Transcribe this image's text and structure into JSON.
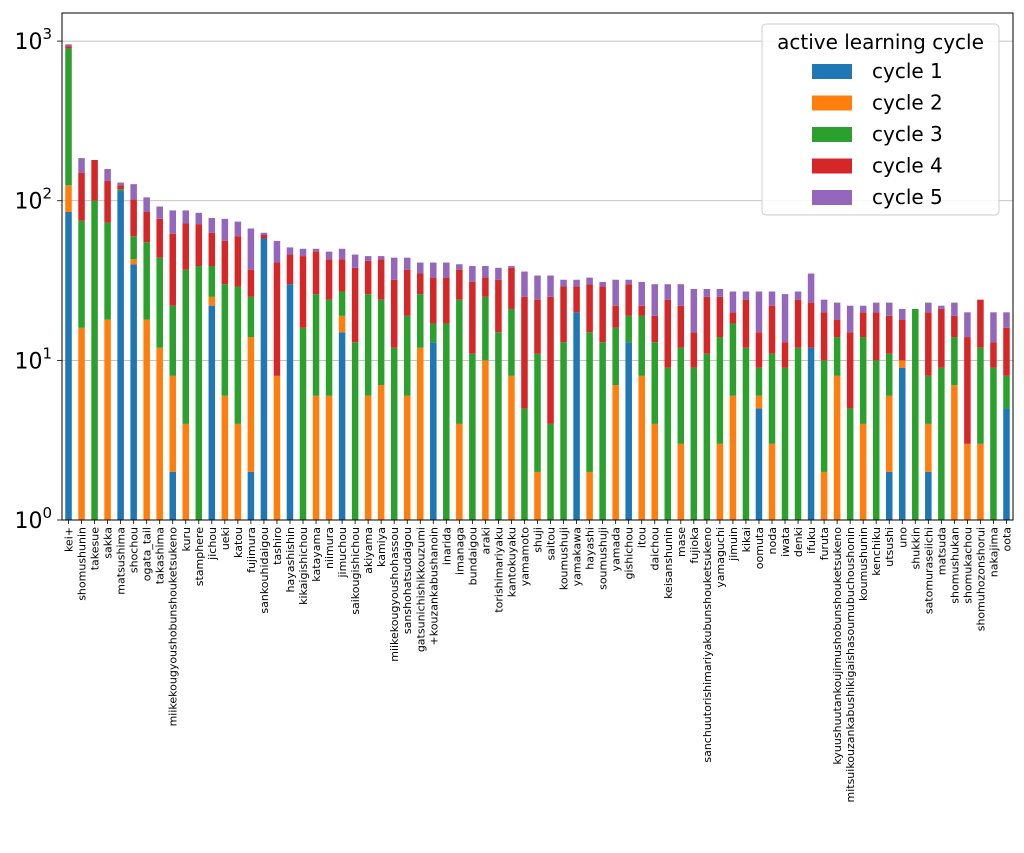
{
  "chart_data": {
    "type": "bar",
    "stacked": true,
    "yscale": "log",
    "ylim": [
      1,
      1500
    ],
    "yticks": [
      1,
      10,
      100,
      1000
    ],
    "ytick_labels": [
      {
        "base": "10",
        "exp": "0"
      },
      {
        "base": "10",
        "exp": "1"
      },
      {
        "base": "10",
        "exp": "2"
      },
      {
        "base": "10",
        "exp": "3"
      }
    ],
    "grid": "y-major",
    "legend": {
      "title": "active learning cycle",
      "position": "top-right"
    },
    "categories": [
      "kei+",
      "shomushunin",
      "takesue",
      "sakka",
      "matsushima",
      "shochou",
      "ogata_tail",
      "takashima",
      "miikekougyoushobunshouketsukeno",
      "kuru",
      "stamphere",
      "jichou",
      "ueki",
      "katou",
      "fujimura",
      "sankouhidaigou",
      "tashiro",
      "hayashishin",
      "kikaigishichou",
      "katayama",
      "niimura",
      "jimuchou",
      "saikougishichou",
      "akiyama",
      "kamiya",
      "miikekougyoushohassou",
      "sanshohatsudaigou",
      "gatsunichishikkouzumi",
      "+kouzankabushanoin",
      "inarida",
      "imanaga",
      "bundaigou",
      "araki",
      "torishimariyaku",
      "kantokuyaku",
      "yamamoto",
      "shuji",
      "saitou",
      "koumushuji",
      "yamakawa",
      "hayashi",
      "soumushuji",
      "yamada",
      "gishichou",
      "itou",
      "daichou",
      "keisanshunin",
      "mase",
      "fujioka",
      "sanchuutorishimariyakubunshouketsukeno",
      "yamaguchi",
      "jimuin",
      "kikai",
      "oomuta",
      "noda",
      "iwata",
      "denki",
      "ifuku",
      "furuta",
      "kyuushuutankoujimushobunshouketsukeno",
      "mitsuikouzankabushikigaishasoumubuchoushonin",
      "koumushunin",
      "kenchiku",
      "utsushi",
      "uno",
      "shukkin",
      "satomuraseiichi",
      "matsuda",
      "shomushukan",
      "shomukachou",
      "shomuhozonshorui",
      "nakajima",
      "oota"
    ],
    "series": [
      {
        "name": "cycle 1",
        "color": "#1f77b4",
        "values": [
          85,
          0,
          0,
          0,
          115,
          40,
          0,
          0,
          2,
          0,
          0,
          22,
          0,
          0,
          2,
          58,
          0,
          30,
          0,
          0,
          0,
          15,
          0,
          0,
          0,
          0,
          0,
          0,
          13,
          0,
          0,
          0,
          0,
          0,
          0,
          0,
          0,
          0,
          0,
          20,
          0,
          0,
          0,
          13,
          0,
          0,
          0,
          0,
          0,
          0,
          0,
          0,
          0,
          5,
          0,
          0,
          0,
          12,
          0,
          0,
          0,
          0,
          0,
          2,
          9,
          0,
          2,
          0,
          0,
          0,
          0,
          0,
          5
        ]
      },
      {
        "name": "cycle 2",
        "color": "#ff7f0e",
        "values": [
          40,
          16,
          0,
          18,
          0,
          3,
          18,
          12,
          6,
          4,
          0,
          3,
          6,
          4,
          12,
          0,
          8,
          0,
          0,
          6,
          6,
          4,
          0,
          6,
          7,
          0,
          6,
          12,
          0,
          0,
          4,
          0,
          10,
          0,
          8,
          0,
          2,
          0,
          0,
          0,
          2,
          0,
          7,
          0,
          8,
          4,
          0,
          3,
          0,
          0,
          3,
          6,
          0,
          1,
          3,
          0,
          0,
          0,
          2,
          8,
          0,
          4,
          0,
          4,
          1,
          0,
          2,
          0,
          7,
          3,
          3,
          0,
          0
        ]
      },
      {
        "name": "cycle 3",
        "color": "#2ca02c",
        "values": [
          775,
          59,
          100,
          55,
          3,
          17,
          37,
          32,
          14,
          33,
          39,
          14,
          24,
          25,
          11,
          0,
          0,
          0,
          16,
          20,
          18,
          8,
          13,
          20,
          17,
          12,
          13,
          14,
          4,
          17,
          20,
          11,
          15,
          15,
          13,
          5,
          9,
          4,
          13,
          0,
          13,
          13,
          9,
          6,
          11,
          9,
          9,
          9,
          9,
          11,
          11,
          11,
          12,
          3,
          8,
          9,
          12,
          0,
          8,
          6,
          5,
          10,
          10,
          5,
          0,
          21,
          4,
          9,
          7,
          0,
          9,
          9,
          3
        ]
      },
      {
        "name": "cycle 4",
        "color": "#d62728",
        "values": [
          30,
          75,
          80,
          60,
          7,
          42,
          30,
          33,
          40,
          35,
          32,
          24,
          26,
          31,
          12,
          3,
          33,
          16,
          29,
          22,
          19,
          16,
          25,
          16,
          19,
          20,
          18,
          9,
          16,
          16,
          13,
          20,
          8,
          17,
          17,
          20,
          13,
          21,
          16,
          9,
          15,
          16,
          6,
          11,
          3,
          6,
          15,
          10,
          6,
          14,
          11,
          3,
          12,
          6,
          11,
          4,
          12,
          11,
          10,
          4,
          10,
          6,
          10,
          8,
          8,
          0,
          12,
          12,
          5,
          11,
          12,
          4,
          8
        ]
      },
      {
        "name": "cycle 5",
        "color": "#9467bd",
        "values": [
          25,
          35,
          0,
          25,
          5,
          25,
          20,
          15,
          25,
          15,
          13,
          15,
          21,
          14,
          30,
          2,
          15,
          5,
          5,
          2,
          5,
          7,
          8,
          3,
          2,
          12,
          7,
          6,
          8,
          8,
          3,
          8,
          6,
          6,
          1,
          11,
          10,
          9,
          3,
          3,
          3,
          2,
          10,
          2,
          9,
          11,
          6,
          8,
          13,
          3,
          3,
          7,
          3,
          12,
          5,
          13,
          3,
          12,
          4,
          5,
          7,
          2,
          3,
          4,
          3,
          0,
          3,
          1,
          4,
          6,
          0,
          7,
          4
        ]
      }
    ]
  }
}
